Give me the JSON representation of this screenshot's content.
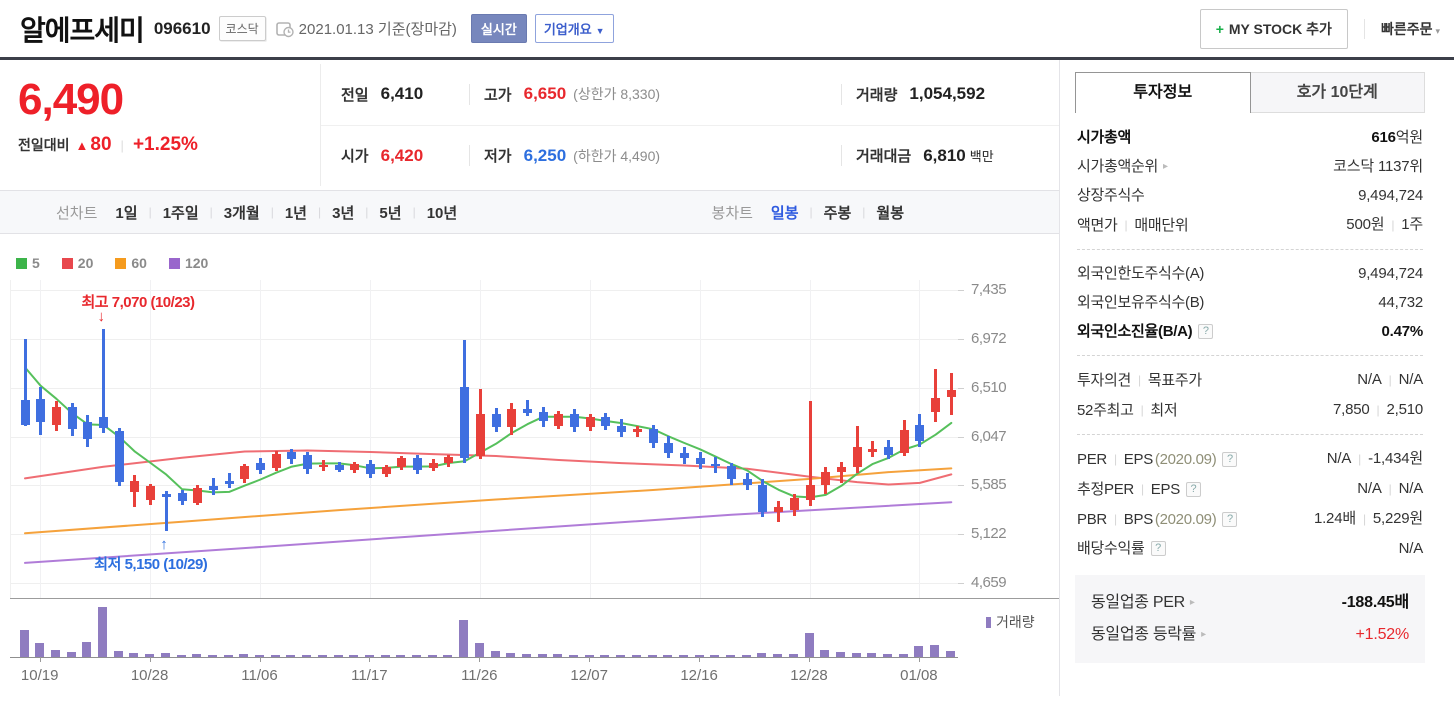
{
  "header": {
    "title": "알에프세미",
    "code": "096610",
    "market": "코스닥",
    "date": "2021.01.13",
    "date_suffix": "기준(장마감)",
    "realtime_btn": "실시간",
    "overview_btn": "기업개요",
    "mystock_plus": "+",
    "mystock_btn": "MY STOCK 추가",
    "quick_order": "빠른주문"
  },
  "price": {
    "current": "6,490",
    "change_label": "전일대비",
    "change_arrow": "▲",
    "change_value": "80",
    "change_pct": "+1.25%"
  },
  "summary_rows": [
    [
      {
        "label": "전일",
        "value": [
          {
            "t": "6,410"
          }
        ]
      },
      {
        "label": "고가",
        "value": [
          {
            "t": "6,650",
            "cls": "red"
          },
          {
            "t": "(상한가 8,330)",
            "cls": "paren"
          }
        ]
      },
      {
        "label": "거래량",
        "value": [
          {
            "t": "1,054,592"
          }
        ]
      }
    ],
    [
      {
        "label": "시가",
        "value": [
          {
            "t": "6,420",
            "cls": "red"
          }
        ]
      },
      {
        "label": "저가",
        "value": [
          {
            "t": "6,250",
            "cls": "blue"
          },
          {
            "t": "(하한가 4,490)",
            "cls": "paren"
          }
        ]
      },
      {
        "label": "거래대금",
        "value": [
          {
            "t": "6,810"
          },
          {
            "t": "백만",
            "cls": "unit"
          }
        ]
      }
    ]
  ],
  "chart_tabs": {
    "line_group": {
      "label": "선차트",
      "items": [
        "1일",
        "1주일",
        "3개월",
        "1년",
        "3년",
        "5년",
        "10년"
      ],
      "active": ""
    },
    "candle_group": {
      "label": "봉차트",
      "items": [
        "일봉",
        "주봉",
        "월봉"
      ],
      "active": "일봉"
    }
  },
  "chart_data": {
    "type": "candlestick+volume",
    "ma_legend": [
      {
        "label": "5",
        "color": "#3cb44a"
      },
      {
        "label": "20",
        "color": "#e8474d"
      },
      {
        "label": "60",
        "color": "#f59b1e"
      },
      {
        "label": "120",
        "color": "#9966cc"
      }
    ],
    "y_ticks": [
      7435,
      6972,
      6510,
      6047,
      5585,
      5122,
      4659
    ],
    "price_range": [
      4517,
      7530
    ],
    "x_ticks": [
      {
        "i": 1,
        "label": "10/19"
      },
      {
        "i": 8,
        "label": "10/28"
      },
      {
        "i": 15,
        "label": "11/06"
      },
      {
        "i": 22,
        "label": "11/17"
      },
      {
        "i": 29,
        "label": "11/26"
      },
      {
        "i": 36,
        "label": "12/07"
      },
      {
        "i": 43,
        "label": "12/16"
      },
      {
        "i": 50,
        "label": "12/28"
      },
      {
        "i": 57,
        "label": "01/08"
      }
    ],
    "annotations": {
      "high": {
        "i": 5,
        "text": "최고 7,070 (10/23)",
        "price": 7070
      },
      "low": {
        "i": 9,
        "text": "최저 5,150 (10/29)",
        "price": 5150
      }
    },
    "candle_colors": {
      "up": "#e8403a",
      "down": "#3f6fe0"
    },
    "volume_color": "#8f7cc0",
    "volume_legend": "거래량",
    "candles": [
      [
        6390,
        6970,
        6150,
        6160
      ],
      [
        6400,
        6520,
        6060,
        6180
      ],
      [
        6160,
        6380,
        6100,
        6330
      ],
      [
        6330,
        6360,
        6050,
        6120
      ],
      [
        6180,
        6250,
        5950,
        6020
      ],
      [
        6230,
        7070,
        6080,
        6130
      ],
      [
        6100,
        6130,
        5580,
        5620
      ],
      [
        5520,
        5680,
        5380,
        5630
      ],
      [
        5450,
        5600,
        5400,
        5580
      ],
      [
        5500,
        5530,
        5150,
        5470
      ],
      [
        5510,
        5540,
        5400,
        5440
      ],
      [
        5420,
        5590,
        5400,
        5560
      ],
      [
        5580,
        5650,
        5490,
        5540
      ],
      [
        5630,
        5700,
        5560,
        5600
      ],
      [
        5640,
        5790,
        5610,
        5770
      ],
      [
        5800,
        5840,
        5690,
        5730
      ],
      [
        5750,
        5910,
        5720,
        5880
      ],
      [
        5900,
        5930,
        5790,
        5830
      ],
      [
        5870,
        5900,
        5690,
        5740
      ],
      [
        5760,
        5820,
        5720,
        5780
      ],
      [
        5780,
        5810,
        5710,
        5730
      ],
      [
        5730,
        5810,
        5700,
        5790
      ],
      [
        5790,
        5820,
        5650,
        5690
      ],
      [
        5690,
        5780,
        5660,
        5760
      ],
      [
        5760,
        5860,
        5730,
        5840
      ],
      [
        5840,
        5870,
        5690,
        5730
      ],
      [
        5750,
        5830,
        5720,
        5800
      ],
      [
        5800,
        5870,
        5760,
        5850
      ],
      [
        6520,
        6960,
        5800,
        5840
      ],
      [
        5860,
        6500,
        5830,
        6260
      ],
      [
        6260,
        6320,
        6090,
        6140
      ],
      [
        6140,
        6360,
        6060,
        6310
      ],
      [
        6310,
        6390,
        6240,
        6270
      ],
      [
        6280,
        6330,
        6140,
        6190
      ],
      [
        6150,
        6290,
        6120,
        6260
      ],
      [
        6260,
        6310,
        6090,
        6140
      ],
      [
        6140,
        6260,
        6100,
        6230
      ],
      [
        6230,
        6270,
        6110,
        6150
      ],
      [
        6150,
        6210,
        6040,
        6090
      ],
      [
        6090,
        6150,
        6040,
        6120
      ],
      [
        6120,
        6160,
        5940,
        5990
      ],
      [
        5990,
        6050,
        5840,
        5890
      ],
      [
        5890,
        5950,
        5790,
        5840
      ],
      [
        5840,
        5900,
        5740,
        5790
      ],
      [
        5790,
        5850,
        5700,
        5770
      ],
      [
        5770,
        5800,
        5590,
        5640
      ],
      [
        5640,
        5700,
        5540,
        5590
      ],
      [
        5590,
        5640,
        5280,
        5330
      ],
      [
        5330,
        5440,
        5240,
        5380
      ],
      [
        5350,
        5500,
        5290,
        5460
      ],
      [
        5450,
        6380,
        5390,
        5590
      ],
      [
        5590,
        5760,
        5500,
        5710
      ],
      [
        5710,
        5810,
        5610,
        5760
      ],
      [
        5760,
        6150,
        5700,
        5950
      ],
      [
        5900,
        6000,
        5850,
        5930
      ],
      [
        5950,
        6010,
        5830,
        5870
      ],
      [
        5890,
        6200,
        5860,
        6110
      ],
      [
        6160,
        6260,
        5950,
        6000
      ],
      [
        6280,
        6690,
        6180,
        6410
      ],
      [
        6420,
        6650,
        6250,
        6490
      ]
    ],
    "volumes": [
      55,
      28,
      14,
      10,
      30,
      100,
      12,
      9,
      7,
      8,
      5,
      6,
      5,
      5,
      6,
      5,
      4,
      4,
      4,
      3,
      3,
      4,
      3,
      3,
      4,
      3,
      3,
      4,
      75,
      28,
      13,
      9,
      7,
      6,
      6,
      5,
      5,
      4,
      4,
      4,
      4,
      5,
      4,
      4,
      4,
      5,
      5,
      8,
      7,
      6,
      48,
      15,
      11,
      9,
      8,
      7,
      7,
      22,
      24,
      13
    ],
    "ma5_seed": [
      7050,
      6950,
      6800,
      6550
    ],
    "ma5_color": "#56c05c",
    "ma_lines": [
      {
        "name": "ma20",
        "color": "#ef6d73",
        "points": [
          [
            0,
            5650
          ],
          [
            5,
            5760
          ],
          [
            10,
            5845
          ],
          [
            14,
            5905
          ],
          [
            18,
            5915
          ],
          [
            22,
            5900
          ],
          [
            26,
            5880
          ],
          [
            30,
            5862
          ],
          [
            34,
            5825
          ],
          [
            38,
            5795
          ],
          [
            42,
            5772
          ],
          [
            46,
            5742
          ],
          [
            50,
            5665
          ],
          [
            53,
            5615
          ],
          [
            55,
            5592
          ],
          [
            57,
            5608
          ],
          [
            59,
            5688
          ]
        ]
      },
      {
        "name": "ma60",
        "color": "#f5a23c",
        "points": [
          [
            0,
            5130
          ],
          [
            10,
            5240
          ],
          [
            20,
            5350
          ],
          [
            30,
            5450
          ],
          [
            40,
            5540
          ],
          [
            50,
            5645
          ],
          [
            55,
            5710
          ],
          [
            59,
            5745
          ]
        ]
      },
      {
        "name": "ma120",
        "color": "#b07cd8",
        "points": [
          [
            0,
            4850
          ],
          [
            15,
            5000
          ],
          [
            30,
            5155
          ],
          [
            45,
            5305
          ],
          [
            59,
            5425
          ]
        ]
      }
    ]
  },
  "sidebar": {
    "tabs": {
      "active": "투자정보",
      "inactive": "호가 10단계"
    },
    "sections": [
      {
        "rows": [
          {
            "label": [
              {
                "t": "시가총액",
                "cls": "b"
              }
            ],
            "value": [
              {
                "t": "616",
                "cls": "b"
              },
              {
                "t": "억원"
              }
            ]
          },
          {
            "label": [
              {
                "t": "시가총액순위"
              },
              {
                "cls": "arr"
              }
            ],
            "value": [
              {
                "t": "코스닥 1137위"
              }
            ]
          },
          {
            "label": [
              {
                "t": "상장주식수"
              }
            ],
            "value": [
              {
                "t": "9,494,724"
              }
            ]
          },
          {
            "label": [
              {
                "t": "액면가"
              },
              {
                "cls": "sep"
              },
              {
                "t": "매매단위"
              }
            ],
            "value": [
              {
                "t": "500원"
              },
              {
                "cls": "sep"
              },
              {
                "t": "1주"
              }
            ]
          }
        ]
      },
      {
        "rows": [
          {
            "label": [
              {
                "t": "외국인한도주식수(A)"
              }
            ],
            "value": [
              {
                "t": "9,494,724"
              }
            ]
          },
          {
            "label": [
              {
                "t": "외국인보유주식수(B)"
              }
            ],
            "value": [
              {
                "t": "44,732"
              }
            ]
          },
          {
            "label": [
              {
                "t": "외국인소진율(B/A)",
                "cls": "b"
              },
              {
                "cls": "help"
              }
            ],
            "value": [
              {
                "t": "0.47%",
                "cls": "b"
              }
            ]
          }
        ]
      },
      {
        "rows": [
          {
            "label": [
              {
                "t": "투자의견"
              },
              {
                "cls": "sep"
              },
              {
                "t": "목표주가"
              }
            ],
            "value": [
              {
                "t": "N/A"
              },
              {
                "cls": "sep"
              },
              {
                "t": "N/A"
              }
            ]
          },
          {
            "label": [
              {
                "t": "52주최고"
              },
              {
                "cls": "sep"
              },
              {
                "t": "최저"
              }
            ],
            "value": [
              {
                "t": "7,850"
              },
              {
                "cls": "sep"
              },
              {
                "t": "2,510"
              }
            ]
          }
        ]
      },
      {
        "rows": [
          {
            "label": [
              {
                "t": "PER"
              },
              {
                "cls": "sep"
              },
              {
                "t": "EPS"
              },
              {
                "t": "(2020.09)",
                "cls": "dim"
              },
              {
                "cls": "help"
              }
            ],
            "value": [
              {
                "t": "N/A"
              },
              {
                "cls": "sep"
              },
              {
                "t": "-1,434원"
              }
            ]
          },
          {
            "label": [
              {
                "t": "추정PER"
              },
              {
                "cls": "sep"
              },
              {
                "t": "EPS"
              },
              {
                "cls": "help"
              }
            ],
            "value": [
              {
                "t": "N/A"
              },
              {
                "cls": "sep"
              },
              {
                "t": "N/A"
              }
            ]
          },
          {
            "label": [
              {
                "t": "PBR"
              },
              {
                "cls": "sep"
              },
              {
                "t": "BPS"
              },
              {
                "t": "(2020.09)",
                "cls": "dim"
              },
              {
                "cls": "help"
              }
            ],
            "value": [
              {
                "t": "1.24배"
              },
              {
                "cls": "sep"
              },
              {
                "t": "5,229원"
              }
            ]
          },
          {
            "label": [
              {
                "t": "배당수익률"
              },
              {
                "cls": "help"
              }
            ],
            "value": [
              {
                "t": "N/A"
              }
            ]
          }
        ]
      }
    ],
    "peer_box": {
      "rows": [
        {
          "label": [
            {
              "t": "동일업종 PER"
            },
            {
              "cls": "arr"
            }
          ],
          "value": [
            {
              "t": "-188.45배",
              "cls": "b"
            }
          ]
        },
        {
          "label": [
            {
              "t": "동일업종 등락률"
            },
            {
              "cls": "arr"
            }
          ],
          "value": [
            {
              "t": "+1.52%",
              "cls": "red"
            }
          ]
        }
      ]
    }
  }
}
